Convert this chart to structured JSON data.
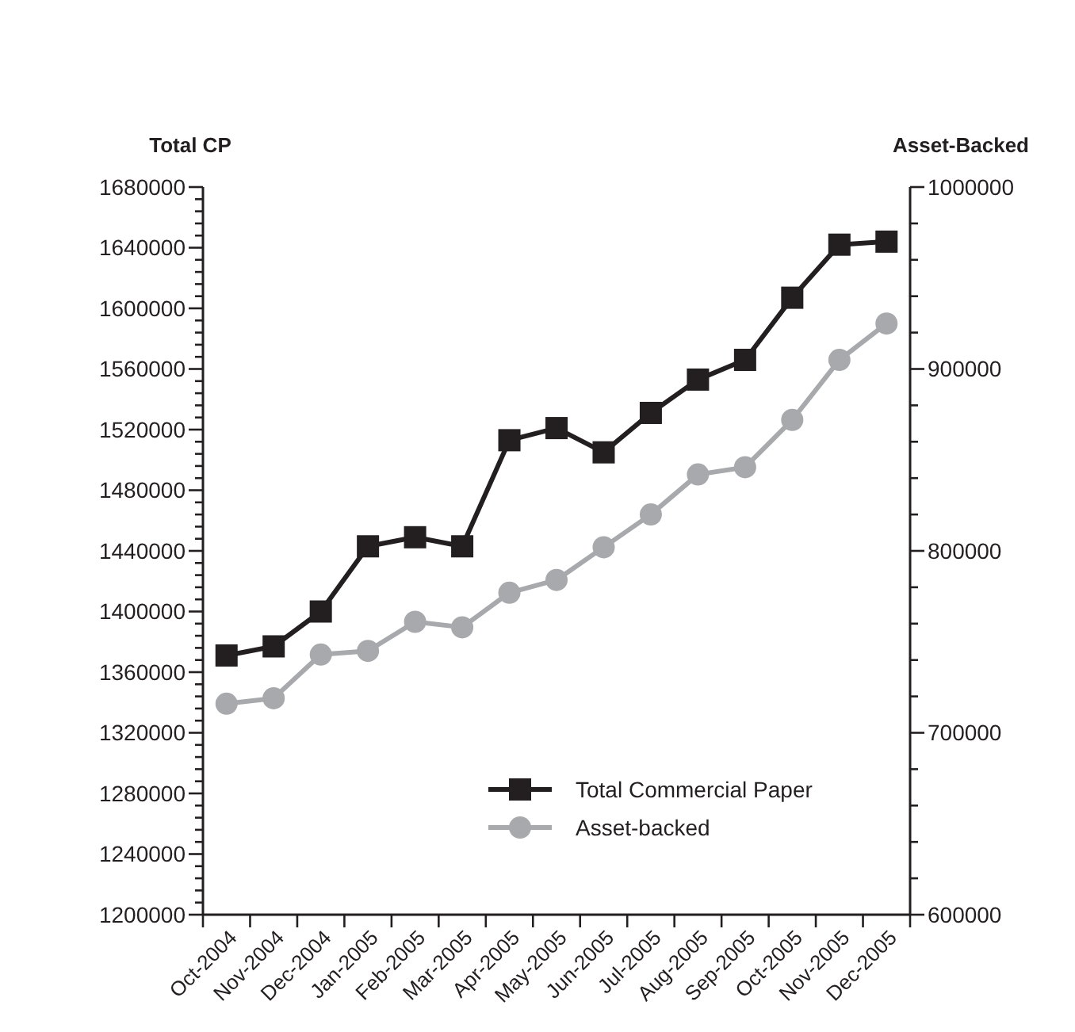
{
  "chart_data": {
    "type": "line",
    "ylabel": "Total CP",
    "y2label": "Asset-Backed",
    "categories": [
      "Oct-2004",
      "Nov-2004",
      "Dec-2004",
      "Jan-2005",
      "Feb-2005",
      "Mar-2005",
      "Apr-2005",
      "May-2005",
      "Jun-2005",
      "Jul-2005",
      "Aug-2005",
      "Sep-2005",
      "Oct-2005",
      "Nov-2005",
      "Dec-2005"
    ],
    "series": [
      {
        "name": "Total Commercial Paper",
        "color": "#231f20",
        "marker": "square",
        "values": [
          1371000,
          1377000,
          1400000,
          1443000,
          1449000,
          1443000,
          1513000,
          1521000,
          1505000,
          1531000,
          1553000,
          1566000,
          1607000,
          1642000,
          1644000
        ]
      },
      {
        "name": "Asset-backed",
        "color": "#a7a9ac",
        "marker": "circle",
        "axis": "y2",
        "values": [
          716000,
          719000,
          743000,
          745000,
          761000,
          758000,
          777000,
          784000,
          802000,
          820000,
          842000,
          846000,
          872000,
          905000,
          925000
        ]
      }
    ],
    "ylim": [
      1200000,
      1680000
    ],
    "yticks": [
      1200000,
      {
        "value": 1208000,
        "label": null
      },
      {
        "value": 1216000,
        "label": null
      },
      {
        "value": 1224000,
        "label": null
      },
      {
        "value": 1232000,
        "label": null
      },
      1240000,
      {
        "value": 1248000,
        "label": null
      },
      {
        "value": 1256000,
        "label": null
      },
      {
        "value": 1264000,
        "label": null
      },
      {
        "value": 1272000,
        "label": null
      },
      1280000,
      {
        "value": 1288000,
        "label": null
      },
      {
        "value": 1296000,
        "label": null
      },
      {
        "value": 1304000,
        "label": null
      },
      {
        "value": 1312000,
        "label": null
      },
      1320000,
      {
        "value": 1328000,
        "label": null
      },
      {
        "value": 1336000,
        "label": null
      },
      {
        "value": 1344000,
        "label": null
      },
      {
        "value": 1352000,
        "label": null
      },
      1360000,
      {
        "value": 1368000,
        "label": null
      },
      {
        "value": 1376000,
        "label": null
      },
      {
        "value": 1384000,
        "label": null
      },
      {
        "value": 1392000,
        "label": null
      },
      1400000,
      {
        "value": 1408000,
        "label": null
      },
      {
        "value": 1416000,
        "label": null
      },
      {
        "value": 1424000,
        "label": null
      },
      {
        "value": 1432000,
        "label": null
      },
      1440000,
      {
        "value": 1448000,
        "label": null
      },
      {
        "value": 1456000,
        "label": null
      },
      {
        "value": 1464000,
        "label": null
      },
      {
        "value": 1472000,
        "label": null
      },
      1480000,
      {
        "value": 1488000,
        "label": null
      },
      {
        "value": 1496000,
        "label": null
      },
      {
        "value": 1504000,
        "label": null
      },
      {
        "value": 1512000,
        "label": null
      },
      1520000,
      {
        "value": 1528000,
        "label": null
      },
      {
        "value": 1536000,
        "label": null
      },
      {
        "value": 1544000,
        "label": null
      },
      {
        "value": 1552000,
        "label": null
      },
      1560000,
      {
        "value": 1568000,
        "label": null
      },
      {
        "value": 1576000,
        "label": null
      },
      {
        "value": 1584000,
        "label": null
      },
      {
        "value": 1592000,
        "label": null
      },
      1600000,
      {
        "value": 1608000,
        "label": null
      },
      {
        "value": 1616000,
        "label": null
      },
      {
        "value": 1624000,
        "label": null
      },
      {
        "value": 1632000,
        "label": null
      },
      1640000,
      {
        "value": 1648000,
        "label": null
      },
      {
        "value": 1656000,
        "label": null
      },
      {
        "value": 1664000,
        "label": null
      },
      {
        "value": 1672000,
        "label": null
      },
      1680000
    ],
    "y2lim": [
      600000,
      1000000
    ],
    "y2ticks": [
      600000,
      {
        "value": 620000,
        "label": null
      },
      {
        "value": 640000,
        "label": null
      },
      {
        "value": 660000,
        "label": null
      },
      {
        "value": 680000,
        "label": null
      },
      700000,
      {
        "value": 720000,
        "label": null
      },
      {
        "value": 740000,
        "label": null
      },
      {
        "value": 760000,
        "label": null
      },
      {
        "value": 780000,
        "label": null
      },
      800000,
      {
        "value": 820000,
        "label": null
      },
      {
        "value": 840000,
        "label": null
      },
      {
        "value": 860000,
        "label": null
      },
      {
        "value": 880000,
        "label": null
      },
      900000,
      {
        "value": 920000,
        "label": null
      },
      {
        "value": 940000,
        "label": null
      },
      {
        "value": 960000,
        "label": null
      },
      {
        "value": 980000,
        "label": null
      },
      1000000
    ],
    "legend": "bottom right",
    "grid": false
  }
}
